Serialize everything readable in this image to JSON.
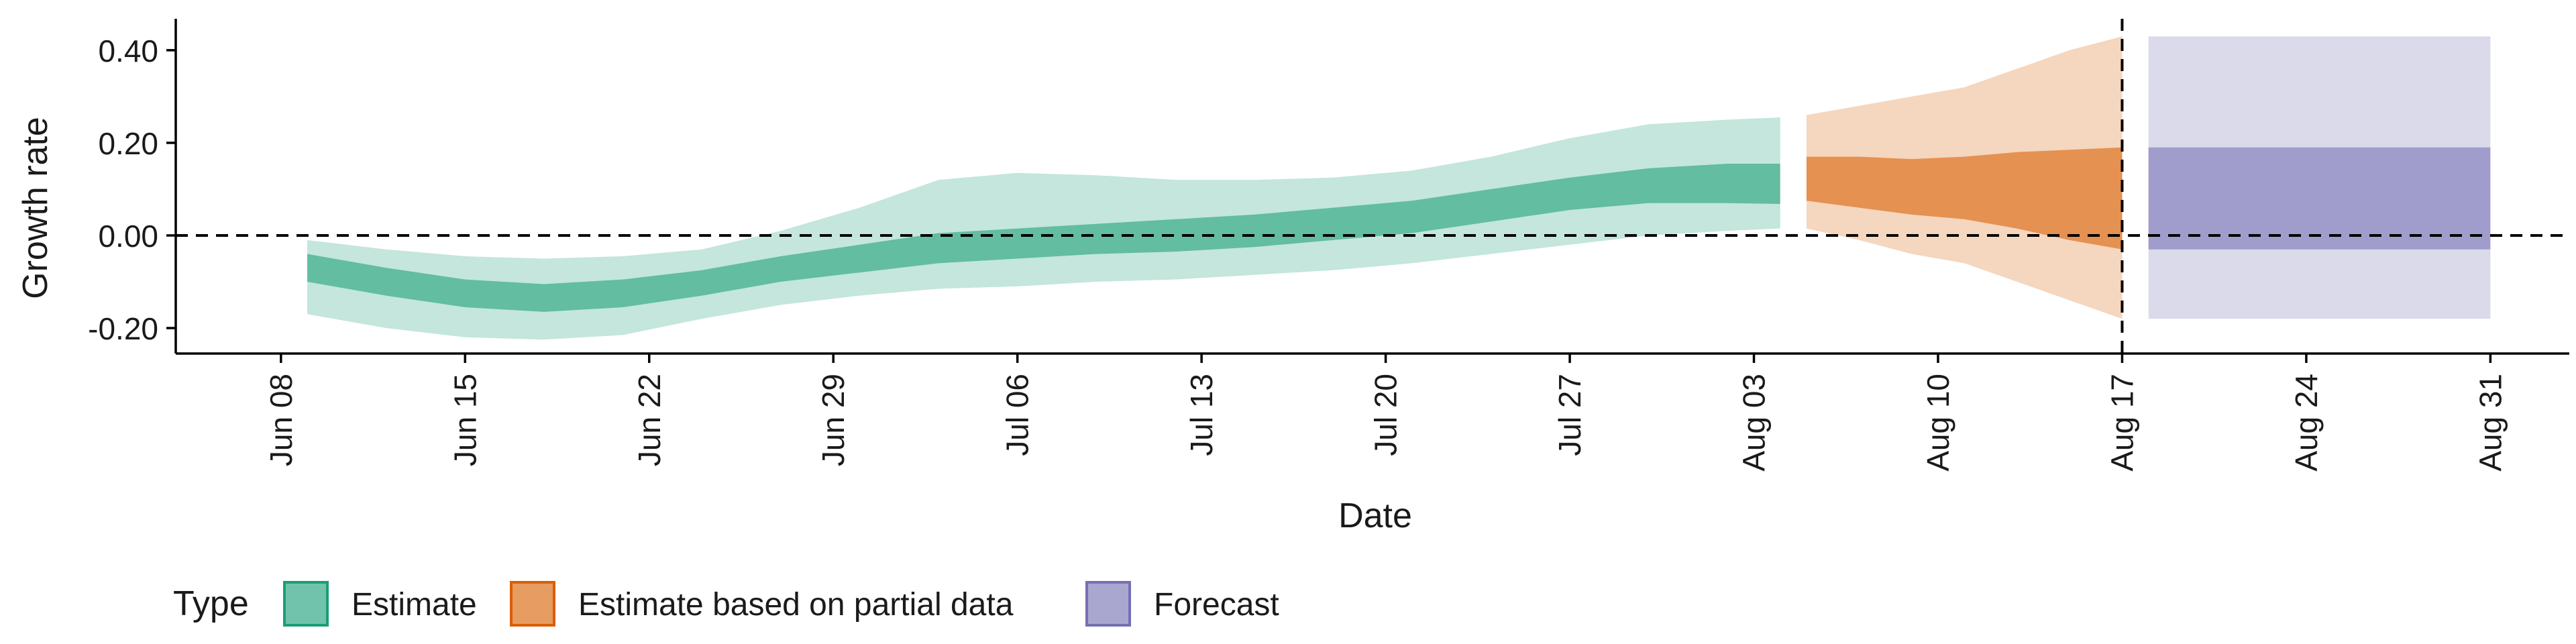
{
  "chart_data": {
    "type": "area",
    "title": "",
    "xlabel": "Date",
    "ylabel": "Growth rate",
    "ylim": [
      -0.255,
      0.465
    ],
    "xlim": [
      "2020-06-04",
      "2020-09-03"
    ],
    "y_ticks": [
      -0.2,
      0.0,
      0.2,
      0.4
    ],
    "y_tick_labels": [
      "-0.20",
      "0.00",
      "0.20",
      "0.40"
    ],
    "x_ticks": [
      "2020-06-08",
      "2020-06-15",
      "2020-06-22",
      "2020-06-29",
      "2020-07-06",
      "2020-07-13",
      "2020-07-20",
      "2020-07-27",
      "2020-08-03",
      "2020-08-10",
      "2020-08-17",
      "2020-08-24",
      "2020-08-31"
    ],
    "x_tick_labels": [
      "Jun 08",
      "Jun 15",
      "Jun 22",
      "Jun 29",
      "Jul 06",
      "Jul 13",
      "Jul 20",
      "Jul 27",
      "Aug 03",
      "Aug 10",
      "Aug 17",
      "Aug 24",
      "Aug 31"
    ],
    "hline": 0.0,
    "vline": "2020-08-17",
    "grid": false,
    "legend": {
      "title": "Type",
      "position": "bottom-left"
    },
    "series": [
      {
        "name": "Estimate",
        "color": "#1b9e77",
        "x": [
          "2020-06-09",
          "2020-06-12",
          "2020-06-15",
          "2020-06-18",
          "2020-06-21",
          "2020-06-24",
          "2020-06-27",
          "2020-06-30",
          "2020-07-03",
          "2020-07-06",
          "2020-07-09",
          "2020-07-12",
          "2020-07-15",
          "2020-07-18",
          "2020-07-21",
          "2020-07-24",
          "2020-07-27",
          "2020-07-30",
          "2020-08-02",
          "2020-08-04"
        ],
        "lower_90": [
          -0.17,
          -0.2,
          -0.22,
          -0.225,
          -0.215,
          -0.18,
          -0.15,
          -0.13,
          -0.115,
          -0.11,
          -0.1,
          -0.095,
          -0.085,
          -0.075,
          -0.06,
          -0.04,
          -0.02,
          0.0,
          0.01,
          0.015
        ],
        "upper_90": [
          -0.01,
          -0.03,
          -0.045,
          -0.05,
          -0.045,
          -0.03,
          0.01,
          0.06,
          0.12,
          0.135,
          0.13,
          0.12,
          0.12,
          0.125,
          0.14,
          0.17,
          0.21,
          0.24,
          0.25,
          0.255
        ],
        "lower_50": [
          -0.1,
          -0.13,
          -0.155,
          -0.165,
          -0.155,
          -0.13,
          -0.1,
          -0.08,
          -0.06,
          -0.05,
          -0.04,
          -0.035,
          -0.025,
          -0.01,
          0.005,
          0.03,
          0.055,
          0.07,
          0.07,
          0.068
        ],
        "upper_50": [
          -0.04,
          -0.07,
          -0.095,
          -0.105,
          -0.095,
          -0.075,
          -0.045,
          -0.02,
          0.005,
          0.015,
          0.025,
          0.035,
          0.045,
          0.06,
          0.075,
          0.1,
          0.125,
          0.145,
          0.155,
          0.155
        ]
      },
      {
        "name": "Estimate based on partial data",
        "color": "#d95f02",
        "x": [
          "2020-08-05",
          "2020-08-07",
          "2020-08-09",
          "2020-08-11",
          "2020-08-13",
          "2020-08-15",
          "2020-08-17"
        ],
        "lower_90": [
          0.015,
          -0.01,
          -0.04,
          -0.06,
          -0.1,
          -0.14,
          -0.18
        ],
        "upper_90": [
          0.26,
          0.28,
          0.3,
          0.32,
          0.36,
          0.4,
          0.43
        ],
        "lower_50": [
          0.075,
          0.06,
          0.045,
          0.035,
          0.015,
          -0.01,
          -0.03
        ],
        "upper_50": [
          0.17,
          0.17,
          0.165,
          0.17,
          0.18,
          0.185,
          0.19
        ]
      },
      {
        "name": "Forecast",
        "color": "#7570b3",
        "x": [
          "2020-08-18",
          "2020-08-31"
        ],
        "lower_90": [
          -0.18,
          -0.18
        ],
        "upper_90": [
          0.43,
          0.43
        ],
        "lower_50": [
          -0.03,
          -0.03
        ],
        "upper_50": [
          0.19,
          0.19
        ]
      }
    ]
  }
}
